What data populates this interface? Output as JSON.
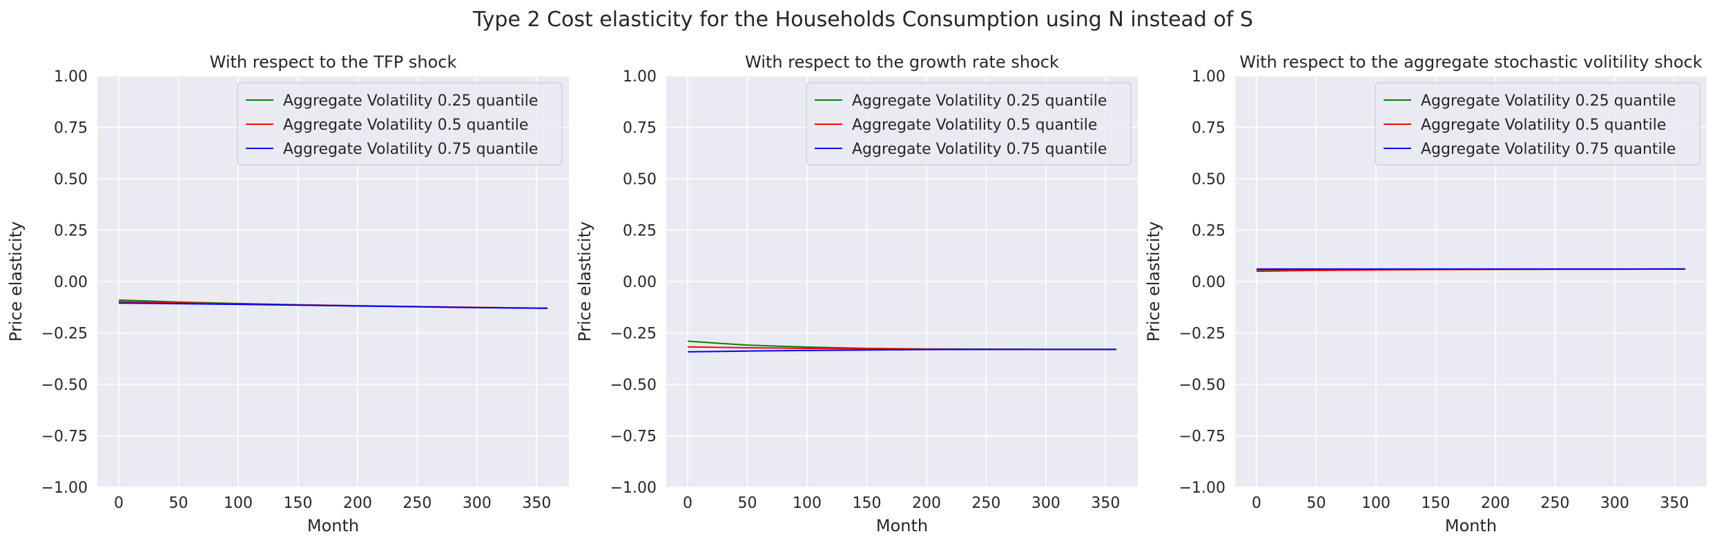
{
  "figure": {
    "suptitle": "Type 2 Cost elasticity for the Households Consumption using N instead of S",
    "background": "#ffffff",
    "axes_background": "#eaeaf2",
    "grid_color": "#ffffff"
  },
  "chart_data": [
    {
      "type": "line",
      "title": "With respect to the TFP shock",
      "xlabel": "Month",
      "ylabel": "Price elasticity",
      "xlim": [
        -17.95,
        376.95
      ],
      "ylim": [
        -1.0,
        1.0
      ],
      "xticks": [
        0,
        50,
        100,
        150,
        200,
        250,
        300,
        350
      ],
      "yticks": [
        -1.0,
        -0.75,
        -0.5,
        -0.25,
        0.0,
        0.25,
        0.5,
        0.75,
        1.0
      ],
      "ytick_labels": [
        "−1.00",
        "−0.75",
        "−0.50",
        "−0.25",
        "0.00",
        "0.25",
        "0.50",
        "0.75",
        "1.00"
      ],
      "grid": true,
      "legend": "upper right",
      "x": [
        0,
        25,
        50,
        100,
        150,
        200,
        250,
        300,
        359
      ],
      "series": [
        {
          "name": "Aggregate Volatility 0.25 quantile",
          "color": "#008000",
          "values": [
            -0.09,
            -0.095,
            -0.1,
            -0.107,
            -0.113,
            -0.118,
            -0.122,
            -0.126,
            -0.13
          ]
        },
        {
          "name": "Aggregate Volatility 0.5 quantile",
          "color": "#ff0000",
          "values": [
            -0.098,
            -0.101,
            -0.104,
            -0.109,
            -0.114,
            -0.118,
            -0.122,
            -0.126,
            -0.13
          ]
        },
        {
          "name": "Aggregate Volatility 0.75 quantile",
          "color": "#0000ff",
          "values": [
            -0.105,
            -0.106,
            -0.108,
            -0.111,
            -0.115,
            -0.119,
            -0.123,
            -0.127,
            -0.13
          ]
        }
      ]
    },
    {
      "type": "line",
      "title": "With respect to the growth rate shock",
      "xlabel": "Month",
      "ylabel": "Price elasticity",
      "xlim": [
        -17.95,
        376.95
      ],
      "ylim": [
        -1.0,
        1.0
      ],
      "xticks": [
        0,
        50,
        100,
        150,
        200,
        250,
        300,
        350
      ],
      "yticks": [
        -1.0,
        -0.75,
        -0.5,
        -0.25,
        0.0,
        0.25,
        0.5,
        0.75,
        1.0
      ],
      "ytick_labels": [
        "−1.00",
        "−0.75",
        "−0.50",
        "−0.25",
        "0.00",
        "0.25",
        "0.50",
        "0.75",
        "1.00"
      ],
      "grid": true,
      "legend": "upper right",
      "x": [
        0,
        25,
        50,
        100,
        150,
        200,
        250,
        300,
        359
      ],
      "series": [
        {
          "name": "Aggregate Volatility 0.25 quantile",
          "color": "#008000",
          "values": [
            -0.29,
            -0.3,
            -0.309,
            -0.319,
            -0.325,
            -0.328,
            -0.329,
            -0.33,
            -0.33
          ]
        },
        {
          "name": "Aggregate Volatility 0.5 quantile",
          "color": "#ff0000",
          "values": [
            -0.318,
            -0.32,
            -0.322,
            -0.325,
            -0.327,
            -0.329,
            -0.33,
            -0.33,
            -0.33
          ]
        },
        {
          "name": "Aggregate Volatility 0.75 quantile",
          "color": "#0000ff",
          "values": [
            -0.342,
            -0.34,
            -0.338,
            -0.335,
            -0.333,
            -0.331,
            -0.33,
            -0.33,
            -0.33
          ]
        }
      ]
    },
    {
      "type": "line",
      "title": "With respect to the aggregate stochastic volitility shock",
      "xlabel": "Month",
      "ylabel": "Price elasticity",
      "xlim": [
        -17.95,
        376.95
      ],
      "ylim": [
        -1.0,
        1.0
      ],
      "xticks": [
        0,
        50,
        100,
        150,
        200,
        250,
        300,
        350
      ],
      "yticks": [
        -1.0,
        -0.75,
        -0.5,
        -0.25,
        0.0,
        0.25,
        0.5,
        0.75,
        1.0
      ],
      "ytick_labels": [
        "−1.00",
        "−0.75",
        "−0.50",
        "−0.25",
        "0.00",
        "0.25",
        "0.50",
        "0.75",
        "1.00"
      ],
      "grid": true,
      "legend": "upper right",
      "x": [
        0,
        25,
        50,
        100,
        150,
        200,
        250,
        300,
        359
      ],
      "series": [
        {
          "name": "Aggregate Volatility 0.25 quantile",
          "color": "#008000",
          "values": [
            0.055,
            0.056,
            0.057,
            0.058,
            0.059,
            0.059,
            0.06,
            0.06,
            0.061
          ]
        },
        {
          "name": "Aggregate Volatility 0.5 quantile",
          "color": "#ff0000",
          "values": [
            0.05,
            0.052,
            0.054,
            0.056,
            0.058,
            0.059,
            0.06,
            0.06,
            0.061
          ]
        },
        {
          "name": "Aggregate Volatility 0.75 quantile",
          "color": "#0000ff",
          "values": [
            0.061,
            0.061,
            0.061,
            0.061,
            0.061,
            0.061,
            0.061,
            0.061,
            0.061
          ]
        }
      ]
    }
  ]
}
